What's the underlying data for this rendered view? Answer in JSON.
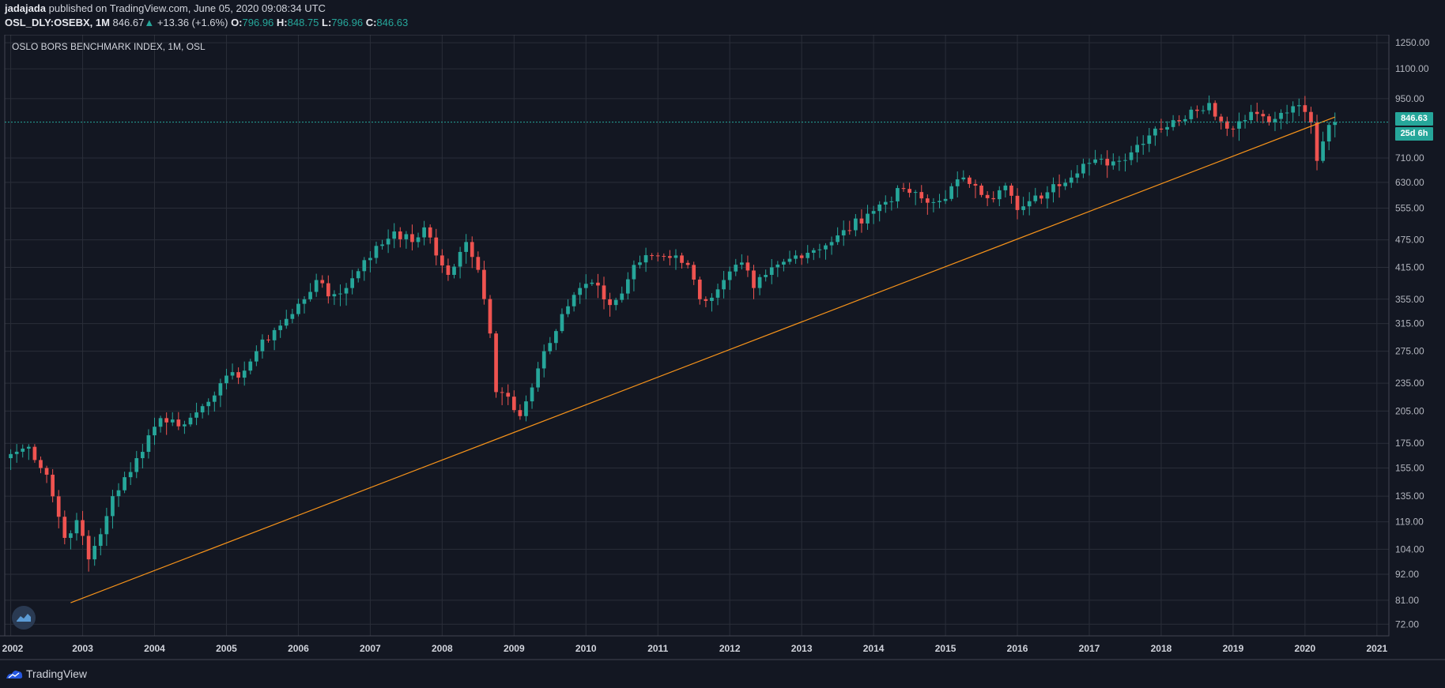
{
  "header": {
    "author": "jadajada",
    "published": "published on TradingView.com, June 05, 2020 09:08:34 UTC",
    "symbol": "OSL_DLY:OSEBX, 1M",
    "last": "846.67",
    "change_arrow": "▲",
    "change": "+13.36 (+1.6%)",
    "o_label": "O:",
    "o_value": "796.96",
    "h_label": "H:",
    "h_value": "848.75",
    "l_label": "L:",
    "l_value": "796.96",
    "c_label": "C:",
    "c_value": "846.63"
  },
  "chart_title": "OSLO BORS BENCHMARK INDEX, 1M, OSL",
  "footer": {
    "brand": "TradingView"
  },
  "price_badges": {
    "current": "846.63",
    "countdown": "25d 6h"
  },
  "colors": {
    "background": "#131722",
    "up": "#26a69a",
    "down": "#ef5350",
    "trendline": "#f7931a",
    "grid": "#2a2e39"
  },
  "chart_data": {
    "type": "candlestick",
    "interval": "1M",
    "scale": "log",
    "ylim": [
      68,
      1300
    ],
    "xlim": [
      "2001-12",
      "2021-03"
    ],
    "y_ticks": [
      "1250.00",
      "1100.00",
      "950.00",
      "710.00",
      "630.00",
      "555.00",
      "475.00",
      "415.00",
      "355.00",
      "315.00",
      "275.00",
      "235.00",
      "205.00",
      "175.00",
      "155.00",
      "135.00",
      "119.00",
      "104.00",
      "92.00",
      "81.00",
      "72.00"
    ],
    "x_ticks": [
      "2002",
      "2003",
      "2004",
      "2005",
      "2006",
      "2007",
      "2008",
      "2009",
      "2010",
      "2011",
      "2012",
      "2013",
      "2014",
      "2015",
      "2016",
      "2017",
      "2018",
      "2019",
      "2020",
      "2021"
    ],
    "current_price": 846.63,
    "trendline": {
      "start": [
        "2002-11",
        80
      ],
      "end": [
        "2020-06",
        868
      ]
    },
    "anchors": [
      [
        "2002-01",
        166
      ],
      [
        "2002-04",
        172
      ],
      [
        "2002-07",
        150
      ],
      [
        "2002-10",
        110
      ],
      [
        "2002-12",
        120
      ],
      [
        "2003-02",
        99
      ],
      [
        "2003-04",
        112
      ],
      [
        "2003-06",
        135
      ],
      [
        "2003-09",
        152
      ],
      [
        "2003-12",
        182
      ],
      [
        "2004-02",
        198
      ],
      [
        "2004-06",
        192
      ],
      [
        "2004-09",
        210
      ],
      [
        "2004-12",
        235
      ],
      [
        "2005-04",
        250
      ],
      [
        "2005-06",
        275
      ],
      [
        "2005-09",
        305
      ],
      [
        "2005-12",
        330
      ],
      [
        "2006-04",
        390
      ],
      [
        "2006-06",
        360
      ],
      [
        "2006-09",
        375
      ],
      [
        "2006-12",
        430
      ],
      [
        "2007-05",
        495
      ],
      [
        "2007-08",
        470
      ],
      [
        "2007-10",
        505
      ],
      [
        "2007-12",
        440
      ],
      [
        "2008-02",
        400
      ],
      [
        "2008-05",
        470
      ],
      [
        "2008-07",
        410
      ],
      [
        "2008-09",
        300
      ],
      [
        "2008-10",
        225
      ],
      [
        "2008-12",
        220
      ],
      [
        "2009-02",
        200
      ],
      [
        "2009-03",
        215
      ],
      [
        "2009-06",
        275
      ],
      [
        "2009-09",
        330
      ],
      [
        "2009-12",
        375
      ],
      [
        "2010-02",
        385
      ],
      [
        "2010-05",
        345
      ],
      [
        "2010-07",
        365
      ],
      [
        "2010-09",
        420
      ],
      [
        "2010-12",
        440
      ],
      [
        "2011-04",
        440
      ],
      [
        "2011-06",
        420
      ],
      [
        "2011-08",
        355
      ],
      [
        "2011-09",
        352
      ],
      [
        "2011-12",
        390
      ],
      [
        "2012-03",
        425
      ],
      [
        "2012-05",
        375
      ],
      [
        "2012-07",
        400
      ],
      [
        "2012-12",
        440
      ],
      [
        "2013-06",
        470
      ],
      [
        "2013-12",
        540
      ],
      [
        "2014-06",
        610
      ],
      [
        "2014-10",
        570
      ],
      [
        "2014-12",
        575
      ],
      [
        "2015-04",
        645
      ],
      [
        "2015-06",
        620
      ],
      [
        "2015-09",
        580
      ],
      [
        "2015-11",
        620
      ],
      [
        "2016-01",
        550
      ],
      [
        "2016-02",
        560
      ],
      [
        "2016-06",
        600
      ],
      [
        "2016-12",
        690
      ],
      [
        "2017-06",
        700
      ],
      [
        "2017-12",
        820
      ],
      [
        "2018-04",
        850
      ],
      [
        "2018-06",
        900
      ],
      [
        "2018-09",
        930
      ],
      [
        "2018-10",
        870
      ],
      [
        "2018-12",
        820
      ],
      [
        "2019-04",
        890
      ],
      [
        "2019-08",
        860
      ],
      [
        "2019-12",
        920
      ],
      [
        "2020-01",
        890
      ],
      [
        "2020-02",
        845
      ],
      [
        "2020-03",
        700
      ],
      [
        "2020-04",
        770
      ],
      [
        "2020-05",
        835
      ],
      [
        "2020-06",
        846
      ]
    ]
  }
}
